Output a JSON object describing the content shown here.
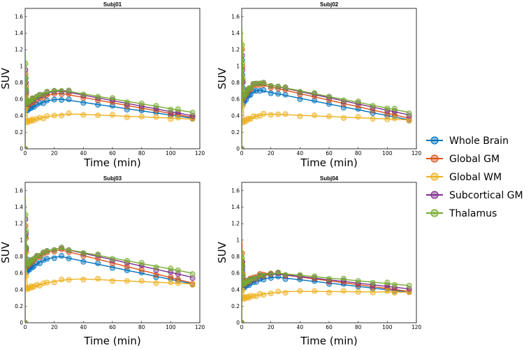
{
  "chart_data": {
    "type": "scatter",
    "legend": {
      "placement": "right",
      "entries": [
        {
          "name": "Whole Brain",
          "color": "#0072BD"
        },
        {
          "name": "Global GM",
          "color": "#D95319"
        },
        {
          "name": "Global WM",
          "color": "#EDB120"
        },
        {
          "name": "Subcortical GM",
          "color": "#7E2F8E"
        },
        {
          "name": "Thalamus",
          "color": "#77AC30"
        }
      ]
    },
    "shared_x": [
      0.25,
      0.5,
      0.75,
      1.0,
      1.5,
      2,
      3,
      4,
      5,
      6,
      8,
      10,
      12.5,
      15,
      20,
      25,
      30,
      40,
      50,
      60,
      70,
      80,
      90,
      100,
      105,
      115
    ],
    "panels": [
      {
        "title": "Subj01",
        "xlabel": "Time (min)",
        "ylabel": "SUV",
        "xlim": [
          0,
          120
        ],
        "ylim": [
          0,
          1.7
        ],
        "xticks": [
          0,
          20,
          40,
          60,
          80,
          100,
          120
        ],
        "yticks": [
          "0",
          "0.2",
          "0.4",
          "0.6",
          "0.8",
          "1",
          "1.2",
          "1.4",
          "1.6"
        ],
        "series": [
          {
            "name": "Whole Brain",
            "peak": 0.98,
            "params": [
              0.6,
              25,
              0.37
            ]
          },
          {
            "name": "Global GM",
            "peak": 1.02,
            "params": [
              0.67,
              25,
              0.38
            ]
          },
          {
            "name": "Global WM",
            "peak": 0.95,
            "params": [
              0.42,
              35,
              0.36
            ]
          },
          {
            "name": "Subcortical GM",
            "peak": 1.08,
            "params": [
              0.7,
              25,
              0.4
            ]
          },
          {
            "name": "Thalamus",
            "peak": 1.18,
            "params": [
              0.71,
              25,
              0.44
            ]
          }
        ]
      },
      {
        "title": "Subj02",
        "xlabel": "Time (min)",
        "ylabel": "SUV",
        "xlim": [
          0,
          120
        ],
        "ylim": [
          0,
          1.7
        ],
        "xticks": [
          0,
          20,
          40,
          60,
          80,
          100,
          120
        ],
        "yticks": [
          "0",
          "0.2",
          "0.4",
          "0.6",
          "0.8",
          "1",
          "1.2",
          "1.4",
          "1.6"
        ],
        "series": [
          {
            "name": "Whole Brain",
            "peak": 1.25,
            "params": [
              0.71,
              12,
              0.35
            ]
          },
          {
            "name": "Global GM",
            "peak": 1.4,
            "params": [
              0.78,
              12,
              0.37
            ]
          },
          {
            "name": "Global WM",
            "peak": 1.05,
            "params": [
              0.42,
              20,
              0.35
            ]
          },
          {
            "name": "Subcortical GM",
            "peak": 1.3,
            "params": [
              0.8,
              12,
              0.41
            ]
          },
          {
            "name": "Thalamus",
            "peak": 1.47,
            "params": [
              0.8,
              12,
              0.44
            ]
          }
        ]
      },
      {
        "title": "Subj03",
        "xlabel": "Time (min)",
        "ylabel": "SUV",
        "xlim": [
          0,
          120
        ],
        "ylim": [
          0,
          1.7
        ],
        "xticks": [
          0,
          20,
          40,
          60,
          80,
          100,
          120
        ],
        "yticks": [
          "0",
          "0.2",
          "0.4",
          "0.6",
          "0.8",
          "1",
          "1.2",
          "1.4",
          "1.6"
        ],
        "series": [
          {
            "name": "Whole Brain",
            "peak": 1.2,
            "params": [
              0.8,
              25,
              0.47
            ]
          },
          {
            "name": "Global GM",
            "peak": 1.35,
            "params": [
              0.88,
              25,
              0.48
            ]
          },
          {
            "name": "Global WM",
            "peak": 1.0,
            "params": [
              0.53,
              40,
              0.47
            ]
          },
          {
            "name": "Subcortical GM",
            "peak": 1.45,
            "params": [
              0.9,
              25,
              0.55
            ]
          },
          {
            "name": "Thalamus",
            "peak": 1.52,
            "params": [
              0.9,
              25,
              0.6
            ]
          }
        ]
      },
      {
        "title": "Subj04",
        "xlabel": "Time (min)",
        "ylabel": "SUV",
        "xlim": [
          0,
          120
        ],
        "ylim": [
          0,
          1.7
        ],
        "xticks": [
          0,
          20,
          40,
          60,
          80,
          100,
          120
        ],
        "yticks": [
          "0",
          "0.2",
          "0.4",
          "0.6",
          "0.8",
          "1",
          "1.2",
          "1.4",
          "1.6"
        ],
        "series": [
          {
            "name": "Whole Brain",
            "peak": 0.8,
            "params": [
              0.55,
              25,
              0.37
            ]
          },
          {
            "name": "Global GM",
            "peak": 0.98,
            "params": [
              0.6,
              20,
              0.38
            ]
          },
          {
            "name": "Global WM",
            "peak": 0.7,
            "params": [
              0.38,
              40,
              0.37
            ]
          },
          {
            "name": "Subcortical GM",
            "peak": 0.85,
            "params": [
              0.59,
              25,
              0.41
            ]
          },
          {
            "name": "Thalamus",
            "peak": 0.9,
            "params": [
              0.6,
              25,
              0.45
            ]
          }
        ]
      }
    ]
  }
}
